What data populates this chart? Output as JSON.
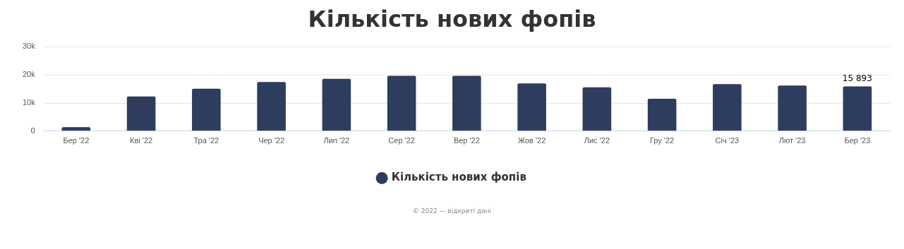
{
  "chart_data": {
    "type": "bar",
    "title": "Кількість нових фопів",
    "categories": [
      "Бер '22",
      "Кві '22",
      "Тра '22",
      "Чер '22",
      "Лип '22",
      "Сер '22",
      "Вер '22",
      "Жов '22",
      "Лис '22",
      "Гру '22",
      "Січ '23",
      "Лют '23",
      "Бер '23"
    ],
    "series": [
      {
        "name": "Кількість нових фопів",
        "color": "#2e3d5e",
        "values": [
          1400,
          12300,
          15100,
          17500,
          18600,
          19700,
          19700,
          17000,
          15600,
          11500,
          16700,
          16200,
          15893
        ],
        "value_labels": [
          null,
          null,
          null,
          null,
          null,
          null,
          null,
          null,
          null,
          null,
          null,
          null,
          "15 893"
        ]
      }
    ],
    "ylim": [
      0,
      30000
    ],
    "yticks": [
      {
        "value": 0,
        "label": "0"
      },
      {
        "value": 10000,
        "label": "10k"
      },
      {
        "value": 20000,
        "label": "20k"
      },
      {
        "value": 30000,
        "label": "30k"
      }
    ],
    "grid": "y",
    "legend": "bottom",
    "annotations": [
      "© 2022 — відкриті дані"
    ]
  }
}
